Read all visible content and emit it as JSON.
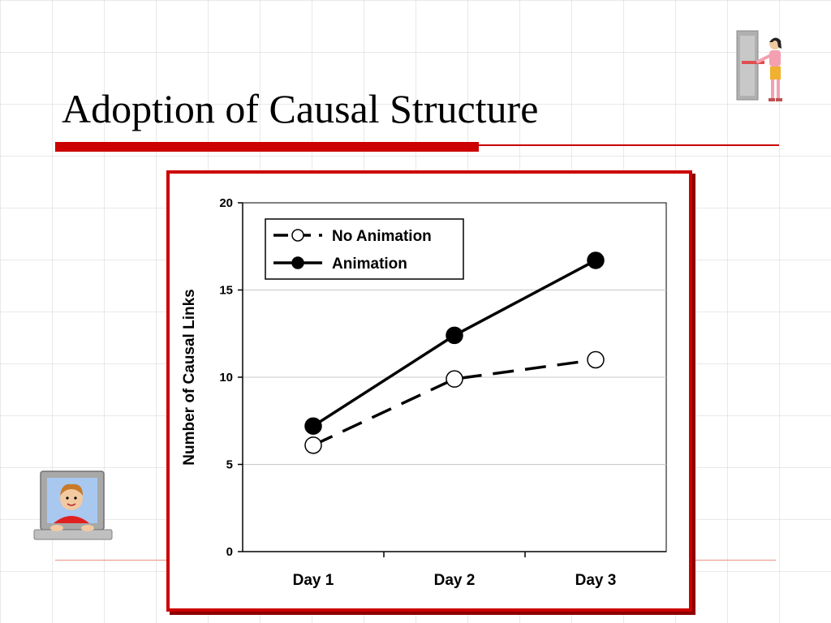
{
  "slide": {
    "title": "Adoption of Causal Structure"
  },
  "colors": {
    "accent": "#cc0000",
    "accent_shadow": "#8b0000",
    "background": "#ffffff",
    "grid": "#d7d7d7",
    "series_line": "#000000"
  },
  "icons": {
    "top_right": "person-at-door-icon",
    "bottom_left": "person-at-computer-icon"
  },
  "chart_data": {
    "type": "line",
    "title": "",
    "xlabel": "",
    "ylabel": "Number of Causal Links",
    "categories": [
      "Day 1",
      "Day 2",
      "Day 3"
    ],
    "ylim": [
      0,
      20
    ],
    "yticks": [
      0,
      5,
      10,
      15,
      20
    ],
    "grid": true,
    "legend_position": "top-left",
    "series": [
      {
        "name": "No Animation",
        "values": [
          6.1,
          9.9,
          11.0
        ],
        "line_style": "dashed",
        "marker": "open-circle"
      },
      {
        "name": "Animation",
        "values": [
          7.2,
          12.4,
          16.7
        ],
        "line_style": "solid",
        "marker": "filled-circle"
      }
    ]
  }
}
